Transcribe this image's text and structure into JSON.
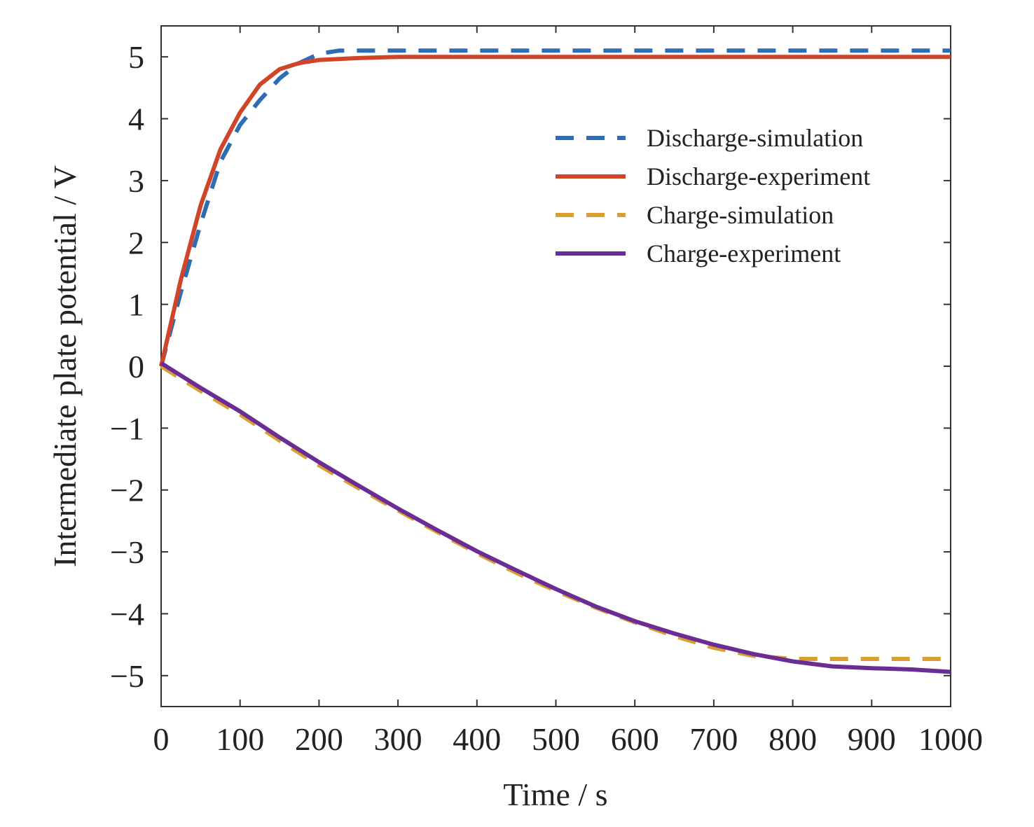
{
  "chart_data": {
    "type": "line",
    "title": "",
    "xlabel": "Time / s",
    "ylabel": "Intermediate plate potential / V",
    "xlim": [
      0,
      1000
    ],
    "ylim": [
      -5.5,
      5.5
    ],
    "xticks": [
      0,
      100,
      200,
      300,
      400,
      500,
      600,
      700,
      800,
      900,
      1000
    ],
    "yticks": [
      5,
      4,
      3,
      2,
      1,
      0,
      -1,
      -2,
      -3,
      -4,
      -5
    ],
    "xtick_labels": [
      "0",
      "100",
      "200",
      "300",
      "400",
      "500",
      "600",
      "700",
      "800",
      "900",
      "1000"
    ],
    "ytick_labels": [
      "5",
      "4",
      "3",
      "2",
      "1",
      "0",
      "−1",
      "−2",
      "−3",
      "−4",
      "−5"
    ],
    "grid": false,
    "legend_position": "top-right",
    "series": [
      {
        "name": "Discharge-simulation",
        "color": "#2e6db4",
        "style": "dashed",
        "x": [
          0,
          25,
          50,
          75,
          100,
          125,
          150,
          175,
          200,
          225,
          250,
          300,
          400,
          500,
          600,
          700,
          800,
          900,
          1000
        ],
        "y": [
          0,
          1.2,
          2.3,
          3.3,
          3.9,
          4.3,
          4.65,
          4.9,
          5.05,
          5.1,
          5.1,
          5.1,
          5.1,
          5.1,
          5.1,
          5.1,
          5.1,
          5.1,
          5.1
        ]
      },
      {
        "name": "Discharge-experiment",
        "color": "#d0452a",
        "style": "solid",
        "x": [
          0,
          25,
          50,
          75,
          100,
          125,
          150,
          175,
          200,
          250,
          300,
          400,
          500,
          600,
          700,
          800,
          900,
          1000
        ],
        "y": [
          0,
          1.4,
          2.6,
          3.5,
          4.1,
          4.55,
          4.8,
          4.9,
          4.95,
          4.98,
          5.0,
          5.0,
          5.0,
          5.0,
          5.0,
          5.0,
          5.0,
          5.0
        ]
      },
      {
        "name": "Charge-simulation",
        "color": "#d9a031",
        "style": "dashed",
        "x": [
          0,
          50,
          100,
          150,
          200,
          250,
          300,
          350,
          400,
          450,
          500,
          550,
          600,
          650,
          700,
          750,
          800,
          850,
          900,
          950,
          1000
        ],
        "y": [
          0,
          -0.4,
          -0.78,
          -1.2,
          -1.6,
          -1.97,
          -2.33,
          -2.68,
          -3.02,
          -3.34,
          -3.63,
          -3.9,
          -4.14,
          -4.36,
          -4.55,
          -4.68,
          -4.73,
          -4.73,
          -4.73,
          -4.73,
          -4.73
        ]
      },
      {
        "name": "Charge-experiment",
        "color": "#6b2c95",
        "style": "solid",
        "x": [
          0,
          50,
          100,
          150,
          200,
          250,
          300,
          350,
          400,
          450,
          500,
          550,
          600,
          650,
          700,
          750,
          800,
          850,
          900,
          950,
          1000
        ],
        "y": [
          0.05,
          -0.35,
          -0.73,
          -1.15,
          -1.55,
          -1.93,
          -2.3,
          -2.65,
          -2.99,
          -3.3,
          -3.6,
          -3.88,
          -4.12,
          -4.32,
          -4.5,
          -4.65,
          -4.77,
          -4.85,
          -4.88,
          -4.9,
          -4.94
        ]
      }
    ]
  }
}
